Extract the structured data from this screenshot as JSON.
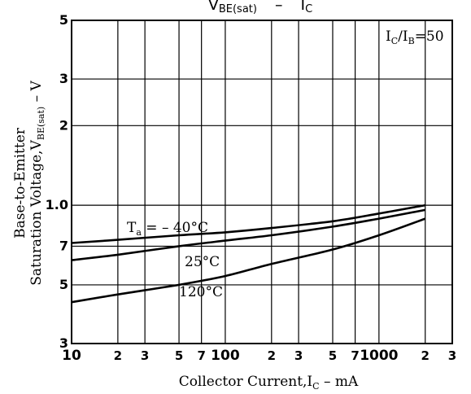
{
  "chart_data": {
    "type": "line",
    "title": {
      "main": "V",
      "sub": "BE(sat)",
      "sep": "–",
      "main2": "I",
      "sub2": "C"
    },
    "annotation": {
      "a": "I",
      "a_sub": "C",
      "b": "/I",
      "b_sub": "B",
      "c": "=50"
    },
    "xlabel": {
      "pre": "Collector Current,I",
      "sub": "C",
      "post": " – mA"
    },
    "ylabel": {
      "line1": "Base-to-Emitter",
      "line2_pre": "Saturation Voltage,V",
      "line2_sub": "BE(sat)",
      "line2_post": " – V"
    },
    "x_scale": "log",
    "y_scale": "log",
    "xlim": [
      10,
      3000
    ],
    "ylim": [
      0.3,
      5
    ],
    "x_tick_labels": [
      {
        "v": 10,
        "t": "10",
        "big": true
      },
      {
        "v": 20,
        "t": "2"
      },
      {
        "v": 30,
        "t": "3"
      },
      {
        "v": 50,
        "t": "5"
      },
      {
        "v": 70,
        "t": "7"
      },
      {
        "v": 100,
        "t": "100",
        "big": true
      },
      {
        "v": 200,
        "t": "2"
      },
      {
        "v": 300,
        "t": "3"
      },
      {
        "v": 500,
        "t": "5"
      },
      {
        "v": 700,
        "t": "7"
      },
      {
        "v": 1000,
        "t": "1000",
        "big": true
      },
      {
        "v": 2000,
        "t": "2"
      },
      {
        "v": 3000,
        "t": "3"
      }
    ],
    "y_tick_labels": [
      {
        "v": 0.3,
        "t": "3"
      },
      {
        "v": 0.5,
        "t": "5"
      },
      {
        "v": 0.7,
        "t": "7"
      },
      {
        "v": 1.0,
        "t": "1.0"
      },
      {
        "v": 2,
        "t": "2"
      },
      {
        "v": 3,
        "t": "3"
      },
      {
        "v": 5,
        "t": "5"
      }
    ],
    "grid": true,
    "series": [
      {
        "name": "Ta = -40°C",
        "label": {
          "pre": "T",
          "sub": "a",
          "post": " = – 40°C"
        },
        "x": [
          10,
          20,
          50,
          100,
          200,
          500,
          1000,
          2000
        ],
        "y": [
          0.72,
          0.74,
          0.77,
          0.79,
          0.82,
          0.87,
          0.93,
          1.0
        ]
      },
      {
        "name": "25°C",
        "label": {
          "pre": "25°C"
        },
        "x": [
          10,
          20,
          50,
          100,
          200,
          500,
          1000,
          2000
        ],
        "y": [
          0.62,
          0.65,
          0.7,
          0.735,
          0.77,
          0.83,
          0.89,
          0.96
        ]
      },
      {
        "name": "120°C",
        "label": {
          "pre": "120°C"
        },
        "x": [
          10,
          20,
          50,
          100,
          200,
          500,
          1000,
          2000
        ],
        "y": [
          0.43,
          0.46,
          0.5,
          0.54,
          0.6,
          0.68,
          0.77,
          0.89
        ]
      }
    ]
  }
}
